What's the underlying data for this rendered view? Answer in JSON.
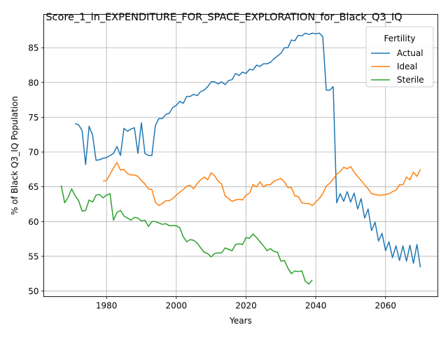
{
  "chart_data": {
    "type": "line",
    "title": "Score_1_in_EXPENDITURE_FOR_SPACE_EXPLORATION_for_Black_Q3_IQ",
    "xlabel": "Years",
    "ylabel": "% of Black Q3_IQ Population",
    "xlim": [
      1962,
      2075
    ],
    "ylim": [
      49.2,
      89.8
    ],
    "xticks": [
      1980,
      2000,
      2020,
      2040,
      2060
    ],
    "yticks": [
      50,
      55,
      60,
      65,
      70,
      75,
      80,
      85
    ],
    "grid": true,
    "legend": {
      "title": "Fertility",
      "position": "top-right"
    },
    "series": [
      {
        "name": "Actual",
        "color": "#1f77b4",
        "x": [
          1971,
          1972,
          1973,
          1974,
          1975,
          1976,
          1977,
          1978,
          1979,
          1980,
          1981,
          1982,
          1983,
          1984,
          1985,
          1986,
          1987,
          1988,
          1989,
          1990,
          1991,
          1992,
          1993,
          1994,
          1995,
          1996,
          1997,
          1998,
          1999,
          2000,
          2001,
          2002,
          2003,
          2004,
          2005,
          2006,
          2007,
          2008,
          2009,
          2010,
          2011,
          2012,
          2013,
          2014,
          2015,
          2016,
          2017,
          2018,
          2019,
          2020,
          2021,
          2022,
          2023,
          2024,
          2025,
          2026,
          2027,
          2028,
          2029,
          2030,
          2031,
          2032,
          2033,
          2034,
          2035,
          2036,
          2037,
          2038,
          2039,
          2040,
          2041,
          2042,
          2043,
          2044,
          2045,
          2046,
          2047,
          2048,
          2049,
          2050,
          2051,
          2052,
          2053,
          2054,
          2055,
          2056,
          2057,
          2058,
          2059,
          2060,
          2061,
          2062,
          2063,
          2064,
          2065,
          2066,
          2067,
          2068,
          2069,
          2070
        ],
        "y": [
          74.1,
          73.9,
          73.1,
          68.2,
          73.7,
          72.4,
          68.8,
          68.9,
          69.1,
          69.2,
          69.5,
          69.8,
          70.8,
          69.5,
          73.4,
          73.0,
          73.3,
          73.5,
          69.8,
          74.2,
          69.8,
          69.5,
          69.5,
          73.8,
          74.8,
          74.8,
          75.4,
          75.6,
          76.4,
          76.7,
          77.3,
          77.0,
          78.0,
          78.0,
          78.3,
          78.1,
          78.7,
          78.9,
          79.4,
          80.1,
          80.1,
          79.8,
          80.1,
          79.7,
          80.3,
          80.4,
          81.3,
          81.0,
          81.5,
          81.3,
          81.9,
          81.8,
          82.5,
          82.3,
          82.7,
          82.7,
          82.9,
          83.4,
          83.8,
          84.2,
          85.0,
          85.0,
          86.1,
          86.0,
          86.8,
          86.7,
          87.1,
          86.9,
          87.1,
          87.0,
          87.1,
          86.6,
          78.9,
          78.9,
          79.4,
          62.7,
          64.0,
          62.9,
          64.3,
          62.8,
          64.1,
          61.8,
          63.3,
          60.5,
          61.8,
          58.7,
          59.9,
          57.2,
          58.3,
          55.8,
          57.1,
          54.8,
          56.5,
          54.4,
          56.5,
          54.3,
          56.6,
          54.0,
          56.7,
          53.4
        ]
      },
      {
        "name": "Ideal",
        "color": "#ff7f0e",
        "x": [
          1979,
          1980,
          1981,
          1982,
          1983,
          1984,
          1985,
          1986,
          1987,
          1988,
          1989,
          1990,
          1991,
          1992,
          1993,
          1994,
          1995,
          1996,
          1997,
          1998,
          1999,
          2000,
          2001,
          2002,
          2003,
          2004,
          2005,
          2006,
          2007,
          2008,
          2009,
          2010,
          2011,
          2012,
          2013,
          2014,
          2015,
          2016,
          2017,
          2018,
          2019,
          2020,
          2021,
          2022,
          2023,
          2024,
          2025,
          2026,
          2027,
          2028,
          2029,
          2030,
          2031,
          2032,
          2033,
          2034,
          2035,
          2036,
          2037,
          2038,
          2039,
          2040,
          2041,
          2042,
          2043,
          2044,
          2045,
          2046,
          2047,
          2048,
          2049,
          2050,
          2051,
          2052,
          2053,
          2054,
          2055,
          2056,
          2057,
          2058,
          2059,
          2060,
          2061,
          2062,
          2063,
          2064,
          2065,
          2066,
          2067,
          2068,
          2069,
          2070
        ],
        "y": [
          65.8,
          65.9,
          66.8,
          67.7,
          68.5,
          67.4,
          67.5,
          66.9,
          66.7,
          66.7,
          66.5,
          65.9,
          65.4,
          64.7,
          64.6,
          62.8,
          62.3,
          62.6,
          63.0,
          63.0,
          63.3,
          63.8,
          64.2,
          64.6,
          65.1,
          65.2,
          64.7,
          65.5,
          66.0,
          66.4,
          66.0,
          67.0,
          66.6,
          65.8,
          65.4,
          63.7,
          63.3,
          62.9,
          63.1,
          63.2,
          63.1,
          63.8,
          64.1,
          65.3,
          65.0,
          65.7,
          65.0,
          65.3,
          65.3,
          65.8,
          66.0,
          66.2,
          65.7,
          64.9,
          64.9,
          63.7,
          63.6,
          62.7,
          62.6,
          62.6,
          62.3,
          62.8,
          63.3,
          64.0,
          65.1,
          65.5,
          66.1,
          66.8,
          67.2,
          67.8,
          67.6,
          67.9,
          67.1,
          66.5,
          65.9,
          65.3,
          64.7,
          64.0,
          63.9,
          63.8,
          63.8,
          63.9,
          64.0,
          64.3,
          64.5,
          65.3,
          65.3,
          66.4,
          66.0,
          67.1,
          66.5,
          67.5
        ]
      },
      {
        "name": "Sterile",
        "color": "#2ca02c",
        "x": [
          1967,
          1968,
          1969,
          1970,
          1971,
          1972,
          1973,
          1974,
          1975,
          1976,
          1977,
          1978,
          1979,
          1980,
          1981,
          1982,
          1983,
          1984,
          1985,
          1986,
          1987,
          1988,
          1989,
          1990,
          1991,
          1992,
          1993,
          1994,
          1995,
          1996,
          1997,
          1998,
          1999,
          2000,
          2001,
          2002,
          2003,
          2004,
          2005,
          2006,
          2007,
          2008,
          2009,
          2010,
          2011,
          2012,
          2013,
          2014,
          2015,
          2016,
          2017,
          2018,
          2019,
          2020,
          2021,
          2022,
          2023,
          2024,
          2025,
          2026,
          2027,
          2028,
          2029,
          2030,
          2031,
          2032,
          2033,
          2034,
          2035,
          2036,
          2037,
          2038,
          2039
        ],
        "y": [
          65.2,
          62.7,
          63.5,
          64.7,
          63.7,
          63.0,
          61.5,
          61.6,
          63.1,
          62.8,
          63.8,
          63.9,
          63.4,
          63.8,
          64.0,
          60.2,
          61.3,
          61.6,
          60.8,
          60.5,
          60.2,
          60.6,
          60.5,
          60.1,
          60.2,
          59.3,
          60.0,
          60.0,
          59.8,
          59.6,
          59.7,
          59.4,
          59.4,
          59.4,
          59.1,
          57.8,
          57.1,
          57.4,
          57.3,
          56.9,
          56.2,
          55.6,
          55.4,
          54.9,
          55.4,
          55.5,
          55.5,
          56.2,
          56.0,
          55.8,
          56.7,
          56.8,
          56.7,
          57.7,
          57.6,
          58.2,
          57.7,
          57.1,
          56.5,
          55.8,
          56.1,
          55.7,
          55.6,
          54.3,
          54.4,
          53.3,
          52.5,
          52.9,
          52.8,
          52.9,
          51.4,
          51.0,
          51.6
        ]
      }
    ]
  }
}
